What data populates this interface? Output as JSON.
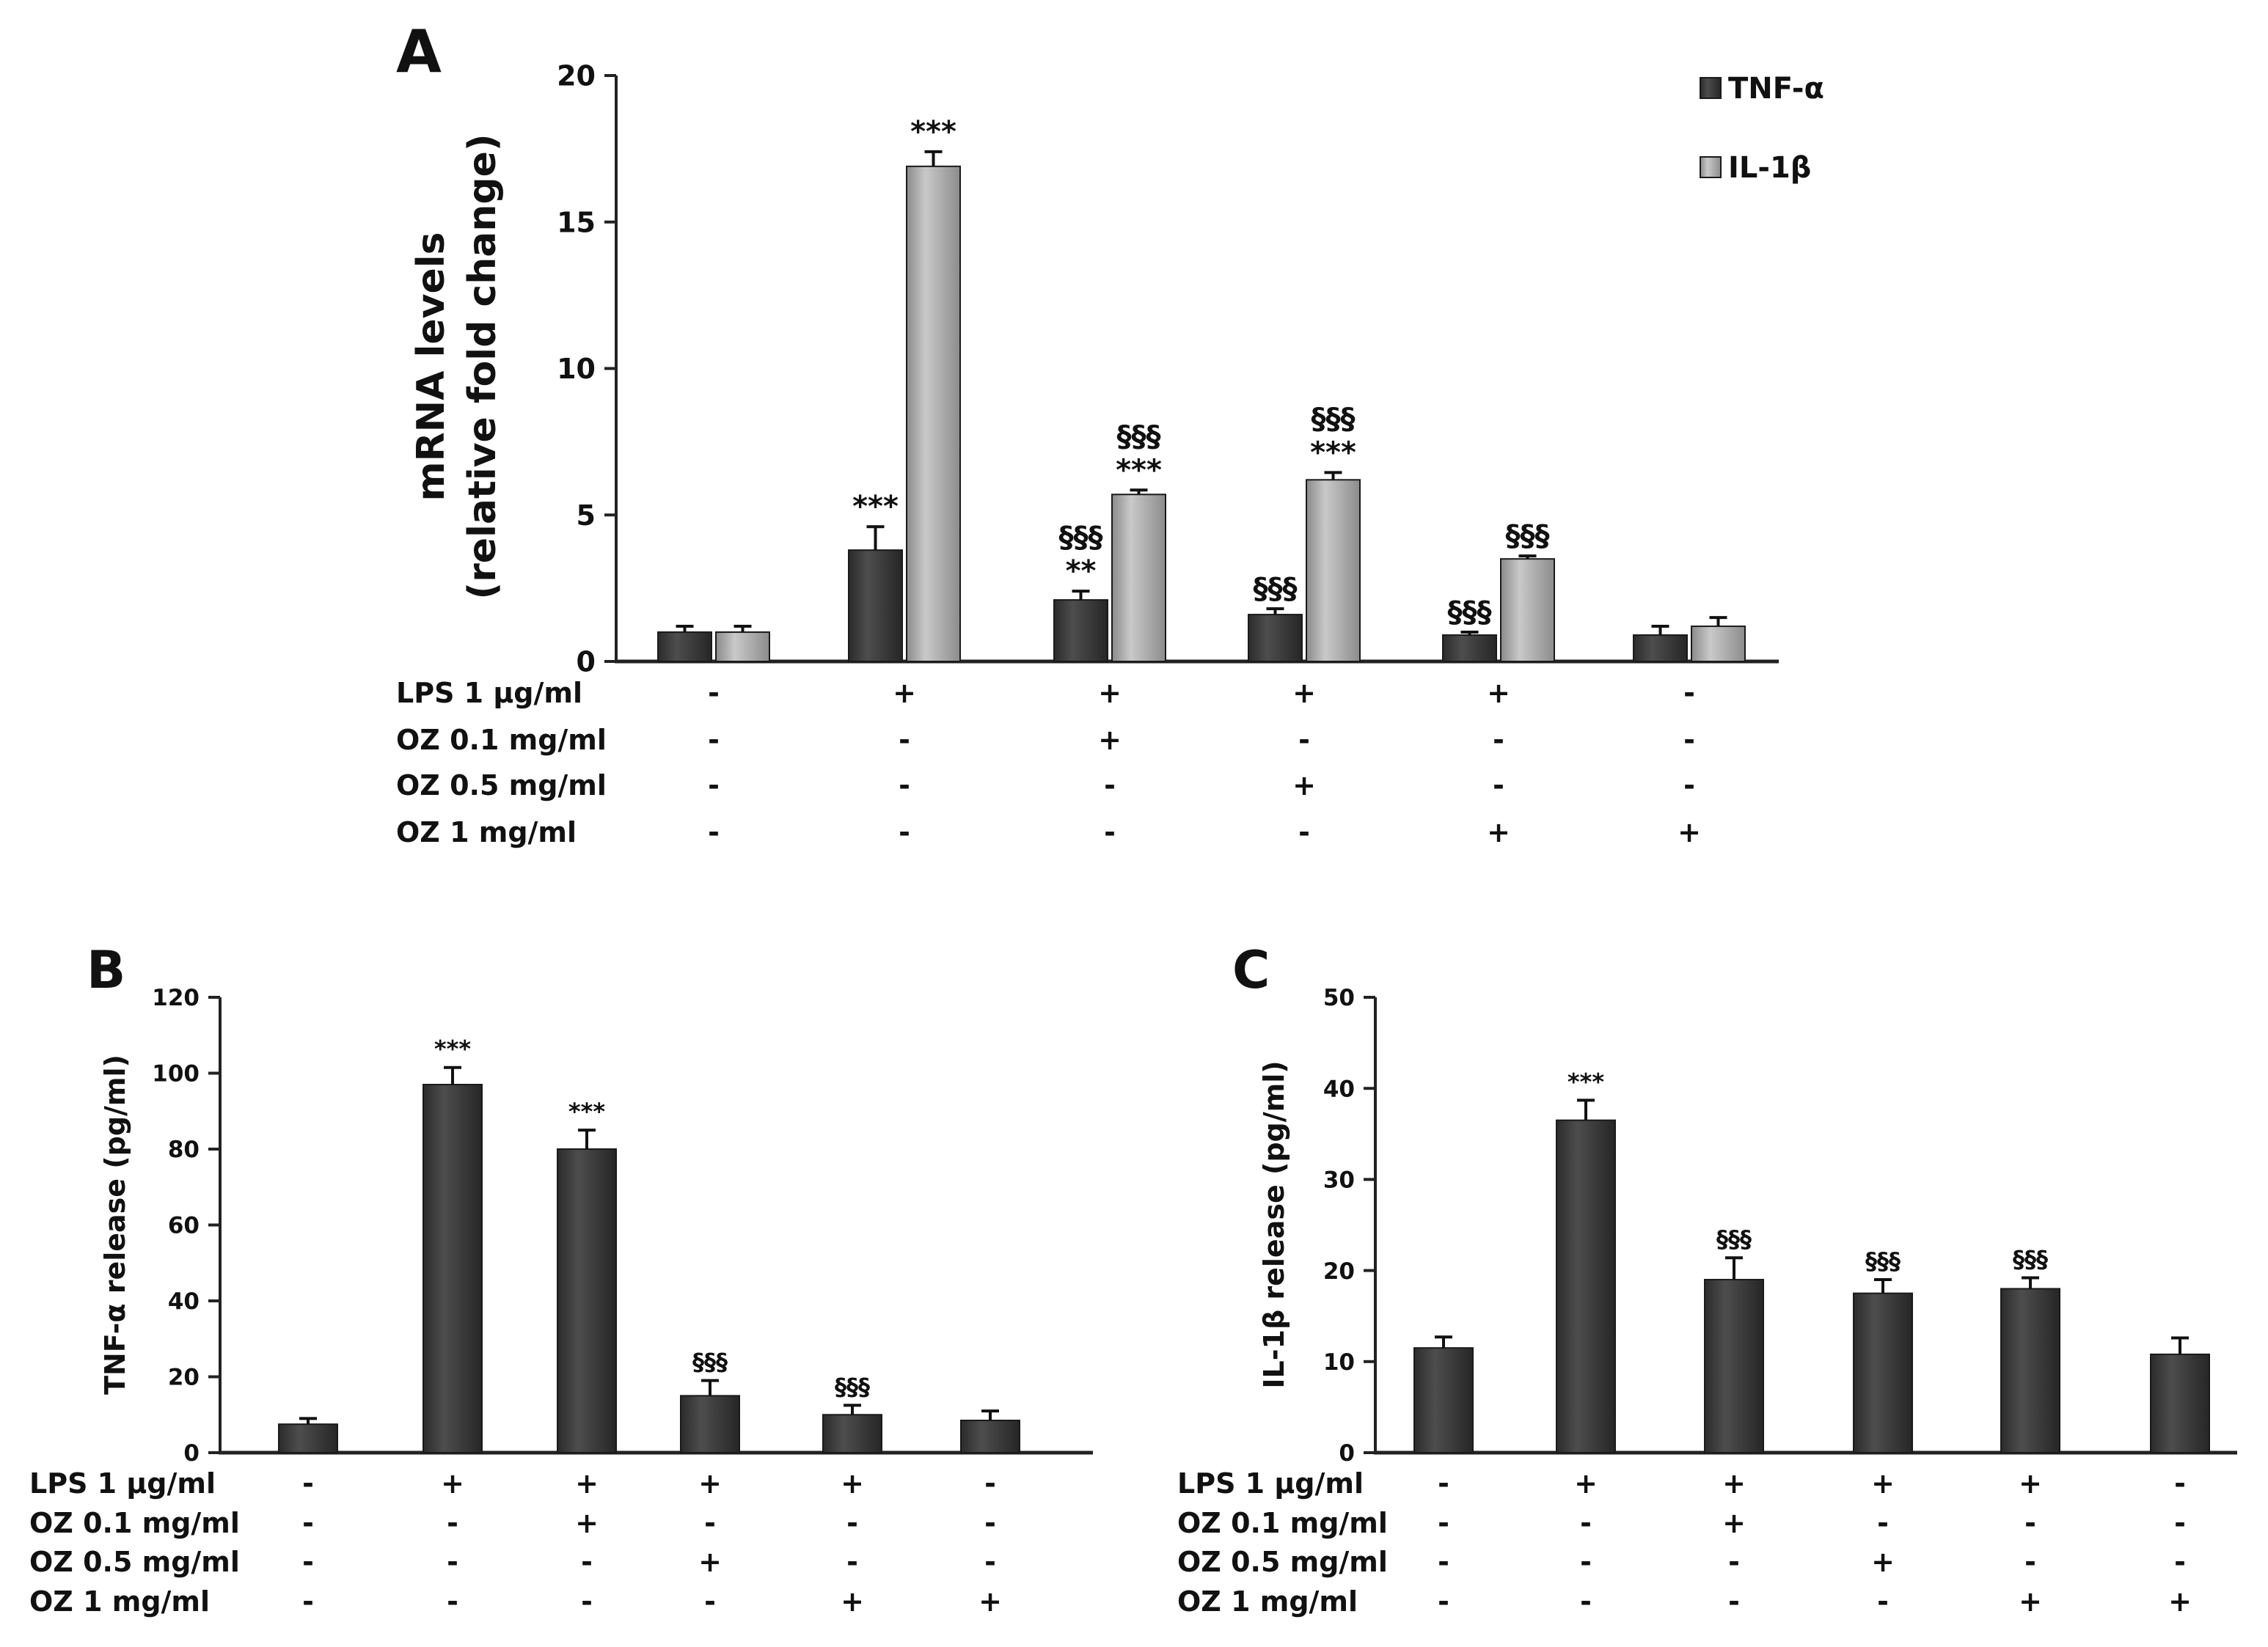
{
  "chart_data": [
    {
      "id": "A",
      "type": "bar",
      "panel_label": "A",
      "ylabel_lines": [
        "mRNA levels",
        "(relative fold change)"
      ],
      "ylim": [
        0,
        20
      ],
      "yticks": [
        0,
        5,
        10,
        15,
        20
      ],
      "grid": false,
      "legend_position": "top-right",
      "series": [
        {
          "name": "TNF-α",
          "color": "#3a3a3a",
          "values": [
            1.0,
            3.8,
            2.1,
            1.6,
            0.9,
            0.9
          ],
          "errors": [
            0.2,
            0.8,
            0.3,
            0.2,
            0.1,
            0.3
          ],
          "annotations": [
            [],
            [
              "***"
            ],
            [
              "§§§",
              "**"
            ],
            [
              "§§§"
            ],
            [
              "§§§"
            ],
            []
          ]
        },
        {
          "name": "IL-1β",
          "color": "#a6a6a6",
          "values": [
            1.0,
            16.9,
            5.7,
            6.2,
            3.5,
            1.2
          ],
          "errors": [
            0.2,
            0.5,
            0.15,
            0.25,
            0.1,
            0.3
          ],
          "annotations": [
            [],
            [
              "***"
            ],
            [
              "§§§",
              "***"
            ],
            [
              "§§§",
              "***"
            ],
            [
              "§§§"
            ],
            []
          ]
        }
      ],
      "treatments": [
        {
          "label": "LPS    1 µg/ml",
          "signs": [
            "-",
            "+",
            "+",
            "+",
            "+",
            "-"
          ]
        },
        {
          "label": "OZ 0.1 mg/ml",
          "signs": [
            "-",
            "-",
            "+",
            "-",
            "-",
            "-"
          ]
        },
        {
          "label": "OZ 0.5 mg/ml",
          "signs": [
            "-",
            "-",
            "-",
            "+",
            "-",
            "-"
          ]
        },
        {
          "label": "OZ    1 mg/ml",
          "signs": [
            "-",
            "-",
            "-",
            "-",
            "+",
            "+"
          ]
        }
      ]
    },
    {
      "id": "B",
      "type": "bar",
      "panel_label": "B",
      "ylabel_lines": [
        "TNF-α release (pg/ml)"
      ],
      "ylim": [
        0,
        120
      ],
      "yticks": [
        0,
        20,
        40,
        60,
        80,
        100,
        120
      ],
      "grid": false,
      "series": [
        {
          "name": "TNF-α",
          "color": "#3a3a3a",
          "values": [
            7.5,
            97,
            80,
            15,
            10,
            8.5
          ],
          "errors": [
            1.5,
            4.5,
            5,
            4,
            2.5,
            2.5
          ],
          "annotations": [
            [],
            [
              "***"
            ],
            [
              "***"
            ],
            [
              "§§§"
            ],
            [
              "§§§"
            ],
            []
          ]
        }
      ],
      "treatments": [
        {
          "label": "LPS    1 µg/ml",
          "signs": [
            "-",
            "+",
            "+",
            "+",
            "+",
            "-"
          ]
        },
        {
          "label": "OZ 0.1 mg/ml",
          "signs": [
            "-",
            "-",
            "+",
            "-",
            "-",
            "-"
          ]
        },
        {
          "label": "OZ 0.5 mg/ml",
          "signs": [
            "-",
            "-",
            "-",
            "+",
            "-",
            "-"
          ]
        },
        {
          "label": "OZ    1 mg/ml",
          "signs": [
            "-",
            "-",
            "-",
            "-",
            "+",
            "+"
          ]
        }
      ]
    },
    {
      "id": "C",
      "type": "bar",
      "panel_label": "C",
      "ylabel_lines": [
        "IL-1β release (pg/ml)"
      ],
      "ylim": [
        0,
        50
      ],
      "yticks": [
        0,
        10,
        20,
        30,
        40,
        50
      ],
      "grid": false,
      "series": [
        {
          "name": "IL-1β",
          "color": "#3a3a3a",
          "values": [
            11.5,
            36.5,
            19,
            17.5,
            18,
            10.8
          ],
          "errors": [
            1.2,
            2.2,
            2.4,
            1.5,
            1.2,
            1.8
          ],
          "annotations": [
            [],
            [
              "***"
            ],
            [
              "§§§"
            ],
            [
              "§§§"
            ],
            [
              "§§§"
            ],
            []
          ]
        }
      ],
      "treatments": [
        {
          "label": "LPS    1 µg/ml",
          "signs": [
            "-",
            "+",
            "+",
            "+",
            "+",
            "-"
          ]
        },
        {
          "label": "OZ 0.1 mg/ml",
          "signs": [
            "-",
            "-",
            "+",
            "-",
            "-",
            "-"
          ]
        },
        {
          "label": "OZ 0.5 mg/ml",
          "signs": [
            "-",
            "-",
            "-",
            "+",
            "-",
            "-"
          ]
        },
        {
          "label": "OZ    1 mg/ml",
          "signs": [
            "-",
            "-",
            "-",
            "-",
            "+",
            "+"
          ]
        }
      ]
    }
  ]
}
